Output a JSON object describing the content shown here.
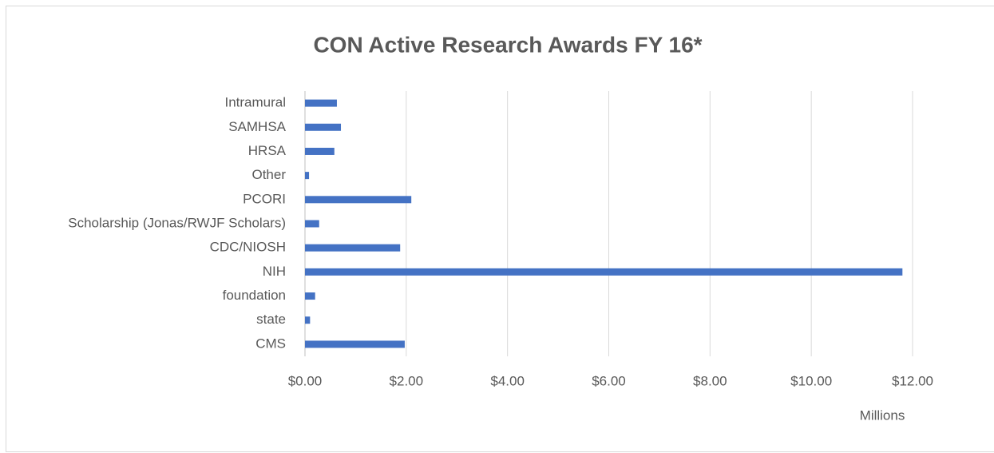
{
  "chart_data": {
    "type": "bar",
    "orientation": "horizontal",
    "title": "CON Active Research Awards FY 16*",
    "x_axis_label": "Millions",
    "categories": [
      "CMS",
      "state",
      "foundation",
      "NIH",
      "CDC/NIOSH",
      "Scholarship (Jonas/RWJF Scholars)",
      "PCORI",
      "Other",
      "HRSA",
      "SAMHSA",
      "Intramural"
    ],
    "values": [
      1.97,
      0.1,
      0.2,
      11.8,
      1.88,
      0.28,
      2.1,
      0.08,
      0.58,
      0.71,
      0.63
    ],
    "color": "#4472c4",
    "xlim": [
      0,
      12
    ],
    "xticks": [
      {
        "value": 0,
        "label": "$0.00"
      },
      {
        "value": 2,
        "label": "$2.00"
      },
      {
        "value": 4,
        "label": "$4.00"
      },
      {
        "value": 6,
        "label": "$6.00"
      },
      {
        "value": 8,
        "label": "$8.00"
      },
      {
        "value": 10,
        "label": "$10.00"
      },
      {
        "value": 12,
        "label": "$12.00"
      }
    ],
    "grid": true
  }
}
